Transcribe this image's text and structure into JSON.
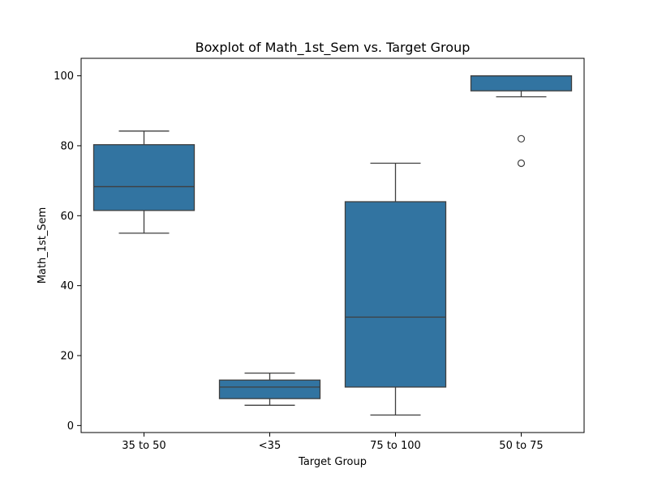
{
  "chart_data": {
    "type": "box",
    "title": "Boxplot of Math_1st_Sem vs. Target Group",
    "xlabel": "Target Group",
    "ylabel": "Math_1st_Sem",
    "ylim": [
      -2,
      105
    ],
    "yticks": [
      0,
      20,
      40,
      60,
      80,
      100
    ],
    "grid": false,
    "color": "#3274a1",
    "edge_color": "#3f3f3f",
    "categories": [
      "35 to 50",
      "<35",
      "75 to 100",
      "50 to 75"
    ],
    "boxes": [
      {
        "category": "35 to 50",
        "whisker_low": 55,
        "q1": 61.5,
        "median": 68.3,
        "q3": 80.3,
        "whisker_high": 84.2,
        "outliers": []
      },
      {
        "category": "<35",
        "whisker_low": 5.8,
        "q1": 7.7,
        "median": 11,
        "q3": 13,
        "whisker_high": 15,
        "outliers": []
      },
      {
        "category": "75 to 100",
        "whisker_low": 3,
        "q1": 11,
        "median": 31,
        "q3": 64,
        "whisker_high": 75,
        "outliers": []
      },
      {
        "category": "50 to 75",
        "whisker_low": 94,
        "q1": 95.7,
        "median": 100,
        "q3": 100,
        "whisker_high": 100,
        "outliers": [
          82,
          75
        ]
      }
    ]
  }
}
